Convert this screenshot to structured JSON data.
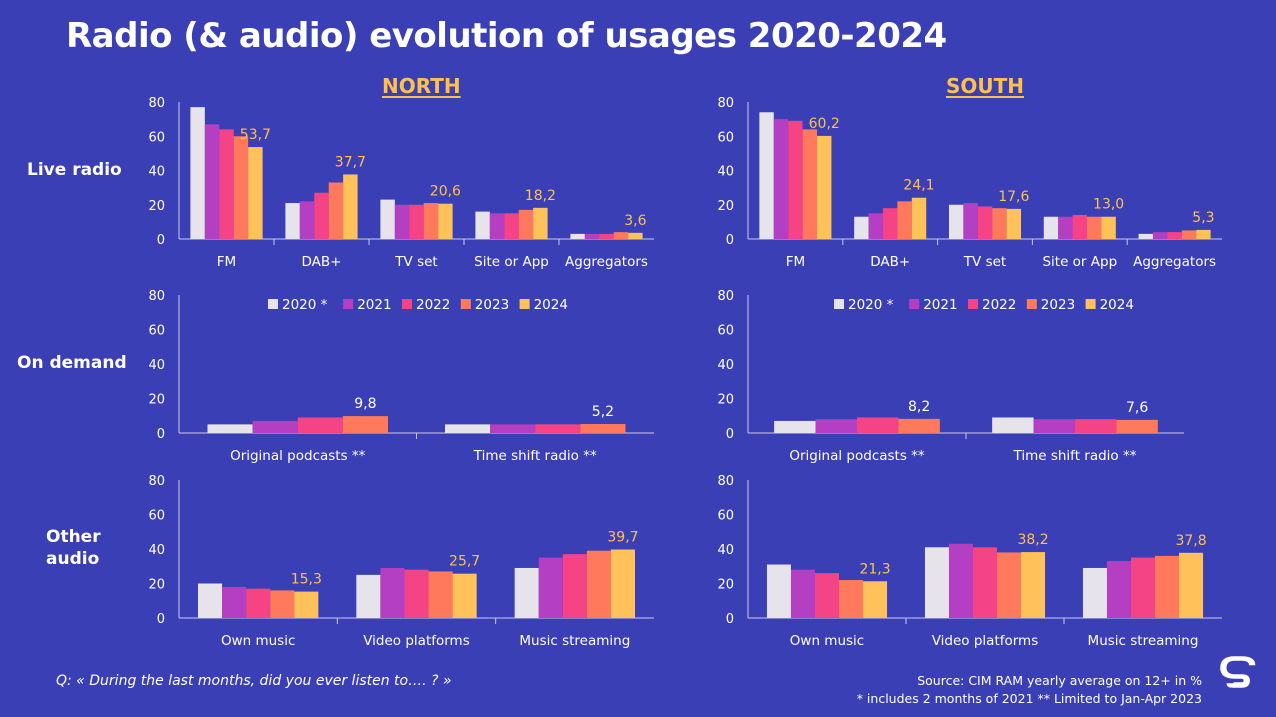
{
  "title": "Radio (& audio) evolution of usages  2020-2024",
  "regions": [
    "NORTH",
    "SOUTH"
  ],
  "row_labels": {
    "live": "Live radio",
    "ondemand": "On demand",
    "other_line1": "Other",
    "other_line2": "audio"
  },
  "legend": [
    "2020 *",
    "2021",
    "2022",
    "2023",
    "2024"
  ],
  "colors": {
    "background": "#3b3fb5",
    "series": [
      "#e6e4ea",
      "#b43fc2",
      "#f54486",
      "#ff7a5c",
      "#ffc15a"
    ],
    "highlight_label": "#ffc04d"
  },
  "footer": {
    "question": "Q: « During the last months, did you ever listen to…. ? »",
    "source_line1": "Source: CIM RAM yearly average on 12+ in %",
    "source_line2": "* includes 2 months of 2021 ** Limited to Jan-Apr 2023"
  },
  "logo_letter": "S",
  "chart_data": [
    {
      "id": "north-live",
      "region": "NORTH",
      "row": "Live radio",
      "type": "bar",
      "ylim": [
        0,
        80
      ],
      "yticks": [
        0,
        20,
        40,
        60,
        80
      ],
      "categories": [
        "FM",
        "DAB+",
        "TV set",
        "Site or App",
        "Aggregators"
      ],
      "series": [
        {
          "name": "2020 *",
          "values": [
            77,
            21,
            23,
            16,
            3
          ]
        },
        {
          "name": "2021",
          "values": [
            67,
            22,
            20,
            15,
            3
          ]
        },
        {
          "name": "2022",
          "values": [
            64,
            27,
            20,
            15,
            3
          ]
        },
        {
          "name": "2023",
          "values": [
            60,
            33,
            21,
            17,
            4
          ]
        },
        {
          "name": "2024",
          "values": [
            53.7,
            37.7,
            20.6,
            18.2,
            3.6
          ]
        }
      ],
      "data_labels": [
        "53,7",
        "37,7",
        "20,6",
        "18,2",
        "3,6"
      ],
      "label_color": "highlight"
    },
    {
      "id": "south-live",
      "region": "SOUTH",
      "row": "Live radio",
      "type": "bar",
      "ylim": [
        0,
        80
      ],
      "yticks": [
        0,
        20,
        40,
        60,
        80
      ],
      "categories": [
        "FM",
        "DAB+",
        "TV set",
        "Site or App",
        "Aggregators"
      ],
      "series": [
        {
          "name": "2020 *",
          "values": [
            74,
            13,
            20,
            13,
            3
          ]
        },
        {
          "name": "2021",
          "values": [
            70,
            15,
            21,
            13,
            4
          ]
        },
        {
          "name": "2022",
          "values": [
            69,
            18,
            19,
            14,
            4
          ]
        },
        {
          "name": "2023",
          "values": [
            64,
            22,
            18,
            13,
            5
          ]
        },
        {
          "name": "2024",
          "values": [
            60.2,
            24.1,
            17.6,
            13.0,
            5.3
          ]
        }
      ],
      "data_labels": [
        "60,2",
        "24,1",
        "17,6",
        "13,0",
        "5,3"
      ],
      "label_color": "highlight"
    },
    {
      "id": "north-ondemand",
      "region": "NORTH",
      "row": "On demand",
      "type": "bar",
      "ylim": [
        0,
        80
      ],
      "yticks": [
        0,
        20,
        40,
        60,
        80
      ],
      "categories": [
        "Original podcasts **",
        "Time shift radio **"
      ],
      "series": [
        {
          "name": "2020 *",
          "values": [
            5,
            5
          ]
        },
        {
          "name": "2021",
          "values": [
            7,
            5
          ]
        },
        {
          "name": "2022",
          "values": [
            9,
            5
          ]
        },
        {
          "name": "2023",
          "values": [
            9.8,
            5.2
          ]
        }
      ],
      "data_labels": [
        "9,8",
        "5,2"
      ],
      "label_color": "white"
    },
    {
      "id": "south-ondemand",
      "region": "SOUTH",
      "row": "On demand",
      "type": "bar",
      "ylim": [
        0,
        80
      ],
      "yticks": [
        0,
        20,
        40,
        60,
        80
      ],
      "categories": [
        "Original podcasts **",
        "Time shift radio **"
      ],
      "series": [
        {
          "name": "2020 *",
          "values": [
            7,
            9
          ]
        },
        {
          "name": "2021",
          "values": [
            8,
            8
          ]
        },
        {
          "name": "2022",
          "values": [
            9,
            8
          ]
        },
        {
          "name": "2023",
          "values": [
            8.2,
            7.6
          ]
        }
      ],
      "data_labels": [
        "8,2",
        "7,6"
      ],
      "label_color": "white"
    },
    {
      "id": "north-other",
      "region": "NORTH",
      "row": "Other audio",
      "type": "bar",
      "ylim": [
        0,
        80
      ],
      "yticks": [
        0,
        20,
        40,
        60,
        80
      ],
      "categories": [
        "Own music",
        "Video platforms",
        "Music streaming"
      ],
      "series": [
        {
          "name": "2020 *",
          "values": [
            20,
            25,
            29
          ]
        },
        {
          "name": "2021",
          "values": [
            18,
            29,
            35
          ]
        },
        {
          "name": "2022",
          "values": [
            17,
            28,
            37
          ]
        },
        {
          "name": "2023",
          "values": [
            16,
            27,
            39
          ]
        },
        {
          "name": "2024",
          "values": [
            15.3,
            25.7,
            39.7
          ]
        }
      ],
      "data_labels": [
        "15,3",
        "25,7",
        "39,7"
      ],
      "label_color": "highlight"
    },
    {
      "id": "south-other",
      "region": "SOUTH",
      "row": "Other audio",
      "type": "bar",
      "ylim": [
        0,
        80
      ],
      "yticks": [
        0,
        20,
        40,
        60,
        80
      ],
      "categories": [
        "Own music",
        "Video platforms",
        "Music streaming"
      ],
      "series": [
        {
          "name": "2020 *",
          "values": [
            31,
            41,
            29
          ]
        },
        {
          "name": "2021",
          "values": [
            28,
            43,
            33
          ]
        },
        {
          "name": "2022",
          "values": [
            26,
            41,
            35
          ]
        },
        {
          "name": "2023",
          "values": [
            22,
            38,
            36
          ]
        },
        {
          "name": "2024",
          "values": [
            21.3,
            38.2,
            37.8
          ]
        }
      ],
      "data_labels": [
        "21,3",
        "38,2",
        "37,8"
      ],
      "label_color": "highlight"
    }
  ]
}
